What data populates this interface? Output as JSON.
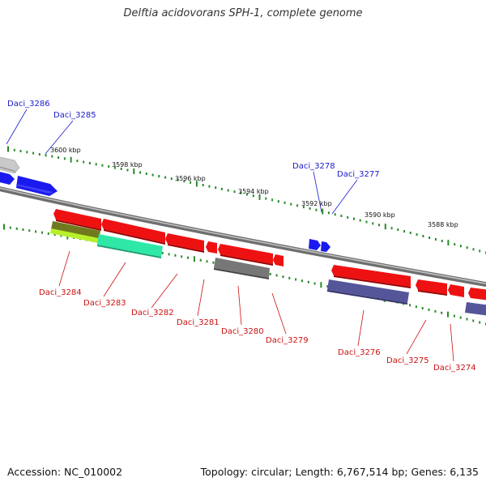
{
  "title": "Delftia acidovorans SPH-1, complete genome",
  "footer": {
    "accession": "Accession: NC_010002",
    "topology": "Topology: circular; Length: 6,767,514 bp; Genes: 6,135"
  },
  "colors": {
    "backbone": "#8a8a8a",
    "tick": "#2a8a2a",
    "forward_label": "#1a1acc",
    "reverse_label": "#cc1111",
    "red": "#ee1111",
    "blue": "#1a1aee",
    "gray": "#777777",
    "light_gray": "#c8c8c8",
    "purple": "#55559a",
    "olive": "#6f7a1e",
    "lime": "#b8ef2a",
    "teal": "#2ee8a8"
  },
  "scale_labels": [
    "3600 kbp",
    "3598 kbp",
    "3596 kbp",
    "3594 kbp",
    "3592 kbp",
    "3590 kbp",
    "3588 kbp"
  ],
  "forward_genes": [
    {
      "label": "Daci_3286",
      "color": "light_gray"
    },
    {
      "label": "Daci_3285",
      "color": "blue"
    },
    {
      "label": "Daci_3278",
      "color": "blue"
    },
    {
      "label": "Daci_3277",
      "color": "blue"
    }
  ],
  "reverse_genes": [
    {
      "label": "Daci_3284",
      "color": "red"
    },
    {
      "label": "Daci_3283",
      "color": "red"
    },
    {
      "label": "Daci_3282",
      "color": "red"
    },
    {
      "label": "Daci_3281",
      "color": "red"
    },
    {
      "label": "Daci_3280",
      "color": "red"
    },
    {
      "label": "Daci_3279",
      "color": "red"
    },
    {
      "label": "Daci_3276",
      "color": "red"
    },
    {
      "label": "Daci_3275",
      "color": "red"
    },
    {
      "label": "Daci_3274",
      "color": "red"
    }
  ]
}
